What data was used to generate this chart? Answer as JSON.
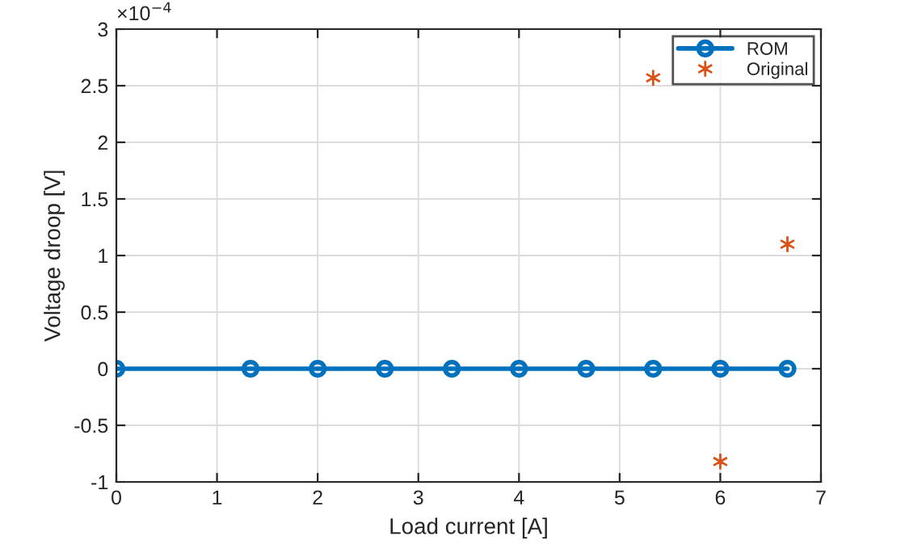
{
  "chart_data": {
    "type": "line",
    "xlabel": "Load current [A]",
    "ylabel": "Voltage droop [V]",
    "annotations": [
      "×10$^{−4}$"
    ],
    "series": [
      {
        "name": "ROM",
        "color": "#0072bd",
        "marker": "circle",
        "line_style": "solid",
        "x": [
          0,
          1.333,
          2,
          2.667,
          3.333,
          4,
          4.667,
          5.333,
          6,
          6.667
        ],
        "values": [
          0,
          0,
          0,
          0,
          0,
          0,
          0,
          0,
          0,
          0
        ]
      },
      {
        "name": "Original",
        "type": "scatter",
        "color": "#d95319",
        "marker": "cross",
        "x": [
          5.333,
          6,
          6.667
        ],
        "values": [
          2.57,
          -0.82,
          1.1
        ]
      }
    ],
    "xlim": [
      0,
      7
    ],
    "xticks": [
      0,
      1,
      2,
      3,
      4,
      5,
      6,
      7
    ],
    "ylim": [
      -1,
      3
    ],
    "yticks": [
      -1,
      -0.5,
      0,
      0.5,
      1,
      1.5,
      2,
      2.5,
      3
    ],
    "grid": true,
    "legend": "top right"
  }
}
